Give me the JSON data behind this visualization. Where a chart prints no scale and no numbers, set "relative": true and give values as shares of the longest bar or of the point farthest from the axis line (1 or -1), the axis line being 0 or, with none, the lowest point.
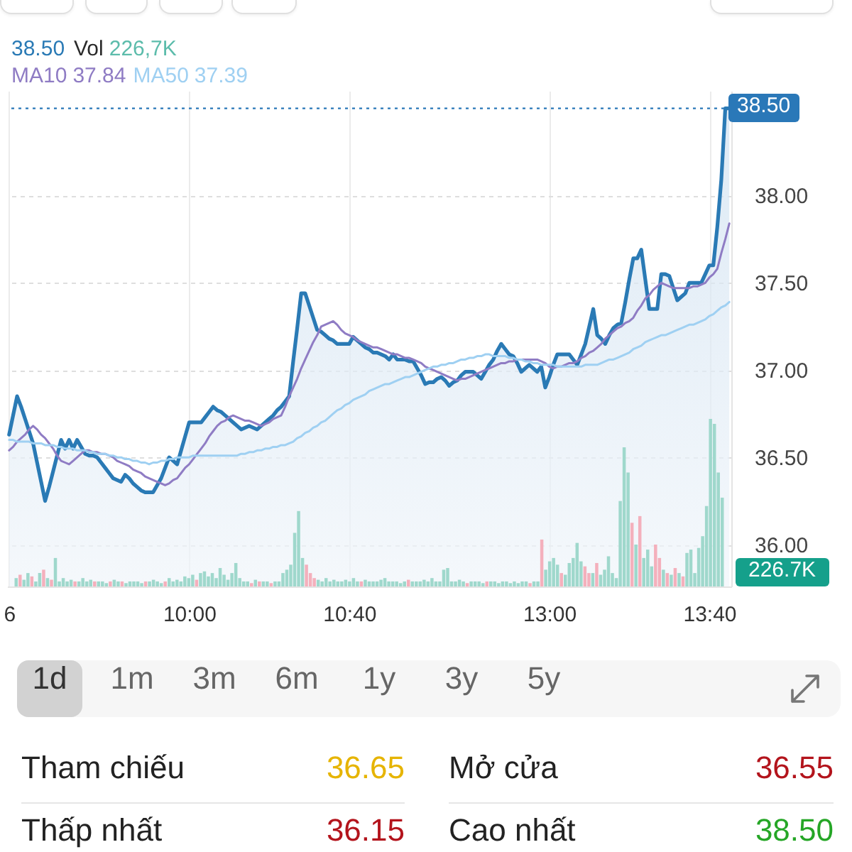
{
  "chart_data": [
    {
      "type": "line",
      "categories": [
        "6",
        null,
        null,
        null,
        null,
        null,
        null,
        null,
        null,
        null,
        null,
        null,
        null,
        null,
        null,
        null,
        null,
        null,
        null,
        null,
        null,
        null,
        null,
        null,
        null,
        null,
        null,
        null,
        null,
        null,
        null,
        null,
        null,
        null,
        null,
        null,
        null,
        null,
        null,
        null,
        null,
        null,
        null,
        null,
        null,
        "10:00",
        null,
        null,
        null,
        null,
        null,
        null,
        null,
        null,
        null,
        null,
        null,
        null,
        null,
        null,
        null,
        null,
        null,
        null,
        null,
        null,
        null,
        null,
        null,
        null,
        null,
        null,
        null,
        null,
        null,
        null,
        null,
        null,
        null,
        null,
        null,
        null,
        null,
        null,
        null,
        "10:40",
        null,
        null,
        null,
        null,
        null,
        null,
        null,
        null,
        null,
        null,
        null,
        null,
        null,
        null,
        null,
        null,
        null,
        null,
        null,
        null,
        null,
        null,
        null,
        null,
        null,
        null,
        null,
        null,
        null,
        null,
        null,
        null,
        null,
        null,
        null,
        null,
        null,
        null,
        null,
        null,
        null,
        null,
        null,
        null,
        null,
        null,
        null,
        null,
        null,
        "13:00",
        null,
        null,
        null,
        null,
        null,
        null,
        null,
        null,
        null,
        null,
        null,
        null,
        null,
        null,
        null,
        null,
        null,
        null,
        null,
        null,
        null,
        null,
        null,
        null,
        null,
        null,
        null,
        null,
        null,
        null,
        null,
        null,
        null,
        null,
        null,
        null,
        null,
        null,
        null,
        "13:40",
        null,
        null,
        null,
        null,
        null
      ],
      "ylim": [
        35.76,
        38.6
      ],
      "yticks": [
        {
          "value": 36,
          "label": "36.00"
        },
        {
          "value": 36.5,
          "label": "36.50"
        },
        {
          "value": 37,
          "label": "37.00"
        },
        {
          "value": 37.5,
          "label": "37.50"
        },
        {
          "value": 38,
          "label": "38.00"
        }
      ],
      "grid": true,
      "legend": "top left",
      "annotations": [
        "38.50",
        "37.84",
        "37.39"
      ],
      "ref_lines": [
        {
          "axis": "y",
          "value": 38.5,
          "label": "38.50",
          "color": "#2a78b8",
          "line_style": "dotted"
        }
      ],
      "series": [
        {
          "type": "area",
          "color": "#2a7ab5",
          "values": [
            36.63,
            36.74,
            36.85,
            36.79,
            36.72,
            36.65,
            36.58,
            36.47,
            36.36,
            36.25,
            36.33,
            36.42,
            36.51,
            36.6,
            36.55,
            36.6,
            36.55,
            36.6,
            36.56,
            36.52,
            36.51,
            36.51,
            36.5,
            36.47,
            36.44,
            36.41,
            36.38,
            36.37,
            36.36,
            36.4,
            36.38,
            36.35,
            36.33,
            36.31,
            36.3,
            36.3,
            36.3,
            36.34,
            36.38,
            36.44,
            36.5,
            36.48,
            36.46,
            36.54,
            36.62,
            36.7,
            36.7,
            36.7,
            36.7,
            36.73,
            36.76,
            36.79,
            36.77,
            36.76,
            36.74,
            36.72,
            36.7,
            36.68,
            36.66,
            36.67,
            36.68,
            36.67,
            36.66,
            36.68,
            36.7,
            36.72,
            36.74,
            36.77,
            36.79,
            36.82,
            36.85,
            37.05,
            37.24,
            37.44,
            37.44,
            37.37,
            37.3,
            37.23,
            37.22,
            37.2,
            37.18,
            37.17,
            37.15,
            37.15,
            37.15,
            37.15,
            37.19,
            37.17,
            37.15,
            37.13,
            37.12,
            37.1,
            37.1,
            37.09,
            37.08,
            37.06,
            37.09,
            37.06,
            37.06,
            37.06,
            37.05,
            37.05,
            37.01,
            36.97,
            36.92,
            36.93,
            36.93,
            36.95,
            36.96,
            36.94,
            36.91,
            36.93,
            36.94,
            36.97,
            36.99,
            36.99,
            36.99,
            36.97,
            36.95,
            36.99,
            37.03,
            37.06,
            37.11,
            37.15,
            37.12,
            37.09,
            37.08,
            37.04,
            36.99,
            37.01,
            37.03,
            37.01,
            36.99,
            37.02,
            36.9,
            36.96,
            37.03,
            37.09,
            37.09,
            37.09,
            37.09,
            37.06,
            37.03,
            37.09,
            37.15,
            37.25,
            37.35,
            37.2,
            37.18,
            37.15,
            37.2,
            37.24,
            37.26,
            37.27,
            37.39,
            37.52,
            37.64,
            37.64,
            37.69,
            37.52,
            37.35,
            37.35,
            37.35,
            37.55,
            37.55,
            37.54,
            37.47,
            37.4,
            37.42,
            37.44,
            37.5,
            37.5,
            37.5,
            37.5,
            37.55,
            37.6,
            37.6,
            37.82,
            38.09,
            38.5,
            38.5
          ]
        },
        {
          "name": "MA10",
          "color": "#8f7cc4",
          "values": [
            36.54,
            36.56,
            36.59,
            36.61,
            36.63,
            36.66,
            36.68,
            36.66,
            36.63,
            36.61,
            36.58,
            36.55,
            36.51,
            36.48,
            36.47,
            36.46,
            36.48,
            36.5,
            36.52,
            36.54,
            36.54,
            36.53,
            36.53,
            36.52,
            36.52,
            36.51,
            36.5,
            36.48,
            36.47,
            36.46,
            36.45,
            36.43,
            36.42,
            36.41,
            36.39,
            36.38,
            36.37,
            36.36,
            36.35,
            36.34,
            36.35,
            36.37,
            36.38,
            36.41,
            36.44,
            36.46,
            36.49,
            36.52,
            36.55,
            36.58,
            36.62,
            36.65,
            36.68,
            36.7,
            36.71,
            36.73,
            36.74,
            36.73,
            36.72,
            36.71,
            36.71,
            36.7,
            36.69,
            36.68,
            36.69,
            36.7,
            36.72,
            36.73,
            36.74,
            36.79,
            36.85,
            36.9,
            36.95,
            37.01,
            37.06,
            37.11,
            37.16,
            37.2,
            37.25,
            37.26,
            37.27,
            37.28,
            37.26,
            37.23,
            37.21,
            37.2,
            37.19,
            37.17,
            37.16,
            37.15,
            37.14,
            37.13,
            37.13,
            37.12,
            37.11,
            37.1,
            37.09,
            37.09,
            37.08,
            37.07,
            37.07,
            37.06,
            37.05,
            37.04,
            37.02,
            37.01,
            37,
            36.99,
            36.98,
            36.97,
            36.96,
            36.95,
            36.94,
            36.95,
            36.95,
            36.96,
            36.97,
            36.98,
            36.99,
            37,
            37.01,
            37.02,
            37.03,
            37.04,
            37.04,
            37.05,
            37.05,
            37.06,
            37.06,
            37.06,
            37.06,
            37.06,
            37.06,
            37.05,
            37.04,
            37.02,
            37.01,
            37.02,
            37.02,
            37.03,
            37.04,
            37.04,
            37.05,
            37.07,
            37.08,
            37.1,
            37.11,
            37.13,
            37.15,
            37.18,
            37.2,
            37.22,
            37.24,
            37.25,
            37.27,
            37.28,
            37.3,
            37.34,
            37.37,
            37.41,
            37.43,
            37.46,
            37.48,
            37.5,
            37.49,
            37.48,
            37.47,
            37.47,
            37.47,
            37.47,
            37.47,
            37.48,
            37.48,
            37.49,
            37.5,
            37.53,
            37.55,
            37.58,
            37.67,
            37.75,
            37.84
          ]
        },
        {
          "name": "MA50",
          "color": "#9fd0f2",
          "values": [
            36.6,
            36.6,
            36.59,
            36.59,
            36.59,
            36.59,
            36.58,
            36.58,
            36.58,
            36.57,
            36.57,
            36.57,
            36.56,
            36.56,
            36.55,
            36.55,
            36.55,
            36.54,
            36.54,
            36.54,
            36.53,
            36.53,
            36.52,
            36.52,
            36.52,
            36.51,
            36.51,
            36.5,
            36.5,
            36.49,
            36.49,
            36.48,
            36.48,
            36.47,
            36.47,
            36.46,
            36.47,
            36.47,
            36.48,
            36.48,
            36.49,
            36.49,
            36.5,
            36.5,
            36.5,
            36.5,
            36.51,
            36.51,
            36.51,
            36.51,
            36.51,
            36.51,
            36.51,
            36.51,
            36.51,
            36.51,
            36.51,
            36.51,
            36.52,
            36.52,
            36.53,
            36.53,
            36.54,
            36.54,
            36.55,
            36.55,
            36.56,
            36.56,
            36.57,
            36.57,
            36.58,
            36.59,
            36.61,
            36.62,
            36.64,
            36.65,
            36.67,
            36.68,
            36.7,
            36.71,
            36.73,
            36.75,
            36.77,
            36.78,
            36.8,
            36.81,
            36.83,
            36.84,
            36.85,
            36.86,
            36.88,
            36.89,
            36.9,
            36.91,
            36.92,
            36.92,
            36.93,
            36.94,
            36.95,
            36.96,
            36.96,
            36.97,
            36.98,
            36.99,
            37,
            37.01,
            37.02,
            37.02,
            37.03,
            37.03,
            37.04,
            37.04,
            37.05,
            37.06,
            37.06,
            37.07,
            37.07,
            37.08,
            37.08,
            37.09,
            37.09,
            37.08,
            37.08,
            37.08,
            37.08,
            37.07,
            37.07,
            37.06,
            37.06,
            37.05,
            37.05,
            37.04,
            37.04,
            37.03,
            37.03,
            37.03,
            37.03,
            37.02,
            37.02,
            37.02,
            37.02,
            37.02,
            37.02,
            37.02,
            37.03,
            37.03,
            37.03,
            37.03,
            37.04,
            37.05,
            37.06,
            37.06,
            37.07,
            37.08,
            37.09,
            37.1,
            37.12,
            37.13,
            37.14,
            37.16,
            37.17,
            37.18,
            37.19,
            37.2,
            37.2,
            37.21,
            37.22,
            37.23,
            37.24,
            37.25,
            37.26,
            37.26,
            37.27,
            37.28,
            37.29,
            37.31,
            37.32,
            37.34,
            37.36,
            37.37,
            37.39
          ]
        }
      ]
    },
    {
      "type": "bar",
      "relative": true,
      "legend": "top left",
      "annotations": [
        "226,7K",
        "226.7K"
      ],
      "categories": [
        null,
        null,
        null,
        null,
        null,
        null,
        null,
        null,
        null,
        null,
        null,
        null,
        null,
        null,
        null,
        null,
        null,
        null,
        null,
        null,
        null,
        null,
        null,
        null,
        null,
        null,
        null,
        null,
        null,
        null,
        null,
        null,
        null,
        null,
        null,
        null,
        null,
        null,
        null,
        null,
        null,
        null,
        null,
        null,
        null,
        null,
        null,
        null,
        null,
        null,
        null,
        null,
        null,
        null,
        null,
        null,
        null,
        null,
        null,
        null,
        null,
        null,
        null,
        null,
        null,
        null,
        null,
        null,
        null,
        null,
        null,
        null,
        null,
        null,
        null,
        null,
        null,
        null,
        null,
        null,
        null,
        null,
        null,
        null,
        null,
        null,
        null,
        null,
        null,
        null,
        null,
        null,
        null,
        null,
        null,
        null,
        null,
        null,
        null,
        null,
        null,
        null,
        null,
        null,
        null,
        null,
        null,
        null,
        null,
        null,
        null,
        null,
        null,
        null,
        null,
        null,
        null,
        null,
        null,
        null,
        null,
        null,
        null,
        null,
        null,
        null,
        null,
        null,
        null,
        null,
        null,
        null,
        null,
        null,
        null,
        null,
        null,
        null,
        null,
        null,
        null,
        null,
        null,
        null,
        null,
        null,
        null,
        null,
        null,
        null,
        null,
        null,
        null,
        null,
        null,
        null,
        null,
        null,
        null,
        null,
        null,
        null,
        null,
        null,
        null,
        null,
        null,
        null,
        null,
        null,
        null,
        null,
        null,
        null,
        null,
        null,
        null,
        null,
        null,
        null,
        null
      ],
      "series": [
        {
          "name": "Vol",
          "values": [
            0.05,
            0.07,
            0.04,
            0.08,
            0.06,
            0.03,
            0.08,
            0.1,
            0.05,
            0.04,
            0.17,
            0.03,
            0.05,
            0.03,
            0.04,
            0.03,
            0.03,
            0.05,
            0.03,
            0.04,
            0.03,
            0.03,
            0.03,
            0.02,
            0.03,
            0.04,
            0.03,
            0.03,
            0.02,
            0.03,
            0.03,
            0.03,
            0.02,
            0.03,
            0.03,
            0.04,
            0.03,
            0.02,
            0.03,
            0.05,
            0.03,
            0.04,
            0.03,
            0.06,
            0.05,
            0.07,
            0.04,
            0.08,
            0.09,
            0.06,
            0.08,
            0.05,
            0.11,
            0.07,
            0.04,
            0.08,
            0.14,
            0.05,
            0.03,
            0.03,
            0.02,
            0.04,
            0.03,
            0.03,
            0.03,
            0.02,
            0.03,
            0.03,
            0.08,
            0.1,
            0.13,
            0.32,
            0.45,
            0.17,
            0.13,
            0.08,
            0.05,
            0.04,
            0.03,
            0.05,
            0.03,
            0.04,
            0.03,
            0.03,
            0.04,
            0.03,
            0.05,
            0.03,
            0.03,
            0.04,
            0.03,
            0.03,
            0.03,
            0.04,
            0.05,
            0.03,
            0.03,
            0.03,
            0.02,
            0.03,
            0.04,
            0.03,
            0.03,
            0.03,
            0.04,
            0.03,
            0.05,
            0.03,
            0.03,
            0.1,
            0.11,
            0.03,
            0.03,
            0.04,
            0.03,
            0.02,
            0.03,
            0.03,
            0.03,
            0.02,
            0.03,
            0.03,
            0.03,
            0.02,
            0.03,
            0.03,
            0.02,
            0.03,
            0.02,
            0.03,
            0.03,
            0.02,
            0.03,
            0.03,
            0.28,
            0.1,
            0.15,
            0.17,
            0.13,
            0.08,
            0.07,
            0.14,
            0.17,
            0.26,
            0.15,
            0.12,
            0.08,
            0.08,
            0.14,
            0.07,
            0.1,
            0.18,
            0.08,
            0.05,
            0.51,
            0.83,
            0.68,
            0.38,
            0.25,
            0.42,
            0.17,
            0.22,
            0.12,
            0.25,
            0.17,
            0.1,
            0.08,
            0.07,
            0.11,
            0.08,
            0.06,
            0.2,
            0.22,
            0.08,
            0.23,
            0.3,
            0.48,
            1,
            0.97,
            0.68,
            0.53
          ],
          "colors": [
            "#9fd8cc",
            "#f4b0bc",
            "#9fd8cc",
            "#9fd8cc",
            "#f4b0bc",
            "#9fd8cc",
            "#9fd8cc",
            "#f4b0bc",
            "#9fd8cc",
            "#f4b0bc",
            "#9fd8cc",
            "#9fd8cc",
            "#9fd8cc",
            "#9fd8cc",
            "#9fd8cc",
            "#f4b0bc",
            "#9fd8cc",
            "#9fd8cc",
            "#9fd8cc",
            "#9fd8cc",
            "#f4b0bc",
            "#9fd8cc",
            "#9fd8cc",
            "#9fd8cc",
            "#f4b0bc",
            "#9fd8cc",
            "#9fd8cc",
            "#f4b0bc",
            "#9fd8cc",
            "#9fd8cc",
            "#9fd8cc",
            "#9fd8cc",
            "#9fd8cc",
            "#f4b0bc",
            "#9fd8cc",
            "#9fd8cc",
            "#9fd8cc",
            "#9fd8cc",
            "#f4b0bc",
            "#9fd8cc",
            "#9fd8cc",
            "#9fd8cc",
            "#9fd8cc",
            "#9fd8cc",
            "#9fd8cc",
            "#9fd8cc",
            "#f4b0bc",
            "#9fd8cc",
            "#9fd8cc",
            "#9fd8cc",
            "#9fd8cc",
            "#9fd8cc",
            "#9fd8cc",
            "#9fd8cc",
            "#9fd8cc",
            "#9fd8cc",
            "#9fd8cc",
            "#9fd8cc",
            "#9fd8cc",
            "#9fd8cc",
            "#f4b0bc",
            "#9fd8cc",
            "#f4b0bc",
            "#9fd8cc",
            "#9fd8cc",
            "#f4b0bc",
            "#9fd8cc",
            "#9fd8cc",
            "#9fd8cc",
            "#9fd8cc",
            "#9fd8cc",
            "#9fd8cc",
            "#9fd8cc",
            "#9fd8cc",
            "#f4b0bc",
            "#f4b0bc",
            "#f4b0bc",
            "#9fd8cc",
            "#9fd8cc",
            "#9fd8cc",
            "#9fd8cc",
            "#9fd8cc",
            "#9fd8cc",
            "#9fd8cc",
            "#9fd8cc",
            "#9fd8cc",
            "#9fd8cc",
            "#9fd8cc",
            "#f4b0bc",
            "#9fd8cc",
            "#9fd8cc",
            "#9fd8cc",
            "#9fd8cc",
            "#9fd8cc",
            "#9fd8cc",
            "#9fd8cc",
            "#9fd8cc",
            "#9fd8cc",
            "#9fd8cc",
            "#9fd8cc",
            "#f4b0bc",
            "#9fd8cc",
            "#9fd8cc",
            "#9fd8cc",
            "#9fd8cc",
            "#9fd8cc",
            "#9fd8cc",
            "#9fd8cc",
            "#9fd8cc",
            "#9fd8cc",
            "#9fd8cc",
            "#9fd8cc",
            "#9fd8cc",
            "#9fd8cc",
            "#9fd8cc",
            "#f4b0bc",
            "#9fd8cc",
            "#9fd8cc",
            "#9fd8cc",
            "#9fd8cc",
            "#f4b0bc",
            "#9fd8cc",
            "#9fd8cc",
            "#9fd8cc",
            "#9fd8cc",
            "#9fd8cc",
            "#9fd8cc",
            "#9fd8cc",
            "#9fd8cc",
            "#9fd8cc",
            "#9fd8cc",
            "#f4b0bc",
            "#9fd8cc",
            "#9fd8cc",
            "#f4b0bc",
            "#9fd8cc",
            "#9fd8cc",
            "#9fd8cc",
            "#9fd8cc",
            "#f4b0bc",
            "#9fd8cc",
            "#9fd8cc",
            "#9fd8cc",
            "#9fd8cc",
            "#9fd8cc",
            "#f4b0bc",
            "#f4b0bc",
            "#9fd8cc",
            "#f4b0bc",
            "#9fd8cc",
            "#9fd8cc",
            "#9fd8cc",
            "#9fd8cc",
            "#9fd8cc",
            "#9fd8cc",
            "#9fd8cc",
            "#9fd8cc",
            "#f4b0bc",
            "#9fd8cc",
            "#f4b0bc",
            "#9fd8cc",
            "#9fd8cc",
            "#9fd8cc",
            "#f4b0bc",
            "#f4b0bc",
            "#9fd8cc",
            "#f4b0bc",
            "#9fd8cc",
            "#f4b0bc",
            "#9fd8cc",
            "#f4b0bc",
            "#9fd8cc",
            "#9fd8cc",
            "#9fd8cc",
            "#9fd8cc",
            "#9fd8cc",
            "#9fd8cc",
            "#9fd8cc",
            "#9fd8cc",
            "#9fd8cc",
            "#9fd8cc"
          ]
        }
      ]
    },
    {
      "type": "other",
      "annotations": [
        "1d",
        "1m",
        "3m",
        "6m",
        "1y",
        "3y",
        "5y"
      ]
    },
    {
      "type": "other",
      "annotations": [
        "Tham chiếu",
        "36.65",
        "Mở cửa",
        "36.55",
        "Thấp nhất",
        "36.15",
        "Cao nhất",
        "38.50"
      ],
      "colors": [
        "#e6b400",
        "#b3141c",
        "#b3141c",
        "#25a626"
      ]
    }
  ]
}
